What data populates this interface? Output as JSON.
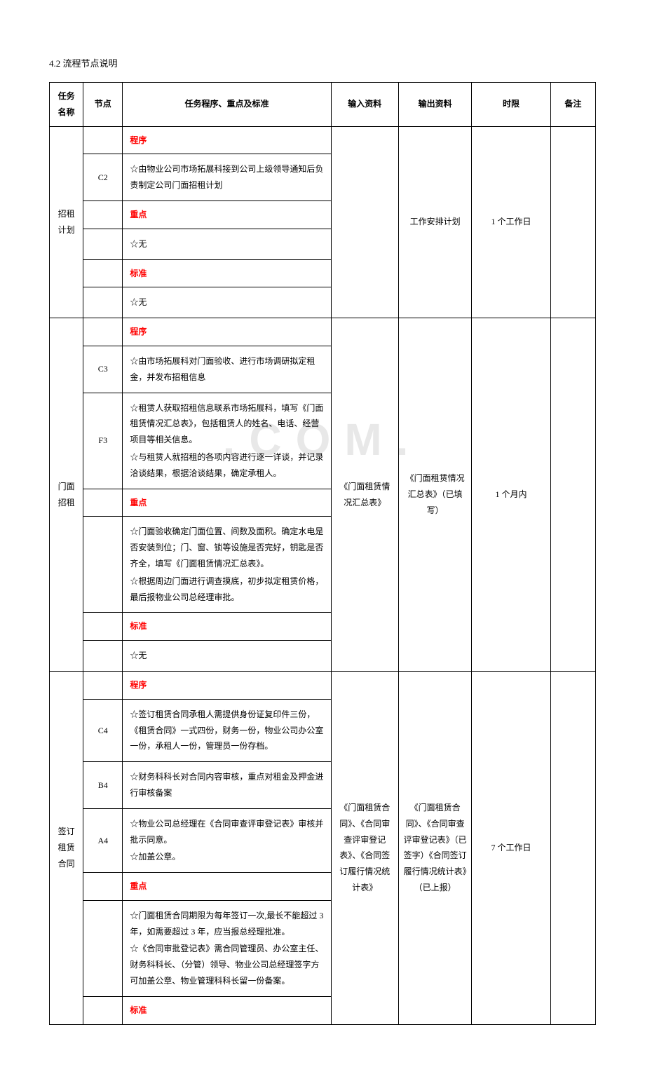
{
  "section_title": "4.2 流程节点说明",
  "watermark": ".COM.",
  "headers": {
    "task": "任务名称",
    "node": "节点",
    "proc": "任务程序、重点及标准",
    "input": "输入资料",
    "output": "输出资料",
    "time": "时限",
    "note": "备注"
  },
  "labels": {
    "procedure": "程序",
    "keypoint": "重点",
    "standard": "标准"
  },
  "rows": [
    {
      "task": "招租计划",
      "input": "",
      "output": "工作安排计划",
      "time": "1 个工作日",
      "note": "",
      "segments": [
        {
          "node": "",
          "type": "label",
          "text_key": "labels.procedure"
        },
        {
          "node": "C2",
          "type": "text",
          "text": "☆由物业公司市场拓展科接到公司上级领导通知后负责制定公司门面招租计划"
        },
        {
          "node": "",
          "type": "label",
          "text_key": "labels.keypoint"
        },
        {
          "node": "",
          "type": "text",
          "text": "☆无"
        },
        {
          "node": "",
          "type": "label",
          "text_key": "labels.standard"
        },
        {
          "node": "",
          "type": "text",
          "text": "☆无"
        }
      ]
    },
    {
      "task": "门面招租",
      "input": "《门面租赁情况汇总表》",
      "output": "《门面租赁情况汇总表》（已填写）",
      "time": "1 个月内",
      "note": "",
      "segments": [
        {
          "node": "",
          "type": "label",
          "text_key": "labels.procedure"
        },
        {
          "node": "C3",
          "type": "text",
          "text": "☆由市场拓展科对门面验收、进行市场调研拟定租金，并发布招租信息"
        },
        {
          "node": "F3",
          "type": "multi",
          "texts": [
            "☆租赁人获取招租信息联系市场拓展科，填写《门面租赁情况汇总表》，包括租赁人的姓名、电话、经营项目等相关信息。",
            "☆与租赁人就招租的各项内容进行逐一详谈，并记录洽谈结果，根据洽谈结果，确定承租人。"
          ]
        },
        {
          "node": "",
          "type": "label",
          "text_key": "labels.keypoint"
        },
        {
          "node": "",
          "type": "multi",
          "texts": [
            "☆门面验收确定门面位置、间数及面积。确定水电是否安装到位；门、窗、锁等设施是否完好，钥匙是否齐全，填写《门面租赁情况汇总表》。",
            "☆根据周边门面进行调查摸底，初步拟定租赁价格，最后报物业公司总经理审批。"
          ]
        },
        {
          "node": "",
          "type": "label",
          "text_key": "labels.standard"
        },
        {
          "node": "",
          "type": "text",
          "text": "☆无"
        }
      ]
    },
    {
      "task": "签订租赁合同",
      "input": "《门面租赁合同》、《合同审查评审登记表》、《合同签订履行情况统计表》",
      "output": "《门面租赁合同》、《合同审查评审登记表》（已签字）《合同签订履行情况统计表》（已上报）",
      "time": "7 个工作日",
      "note": "",
      "segments": [
        {
          "node": "",
          "type": "label",
          "text_key": "labels.procedure"
        },
        {
          "node": "C4",
          "type": "text",
          "text": "☆签订租赁合同承租人需提供身份证复印件三份，《租赁合同》一式四份，财务一份，物业公司办公室一份，承租人一份，管理员一份存档。"
        },
        {
          "node": "B4",
          "type": "text",
          "text": "☆财务科科长对合同内容审核，重点对租金及押金进行审核备案"
        },
        {
          "node": "A4",
          "type": "multi",
          "texts": [
            "☆物业公司总经理在《合同审查评审登记表》审核并批示同意。",
            "☆加盖公章。"
          ]
        },
        {
          "node": "",
          "type": "label",
          "text_key": "labels.keypoint"
        },
        {
          "node": "",
          "type": "multi",
          "texts": [
            "☆门面租赁合同期限为每年签订一次,最长不能超过 3 年，如需要超过 3 年，应当报总经理批准。",
            "☆《合同审批登记表》需合同管理员、办公室主任、财务科科长、（分管）领导、物业公司总经理签字方可加盖公章、物业管理科科长留一份备案。"
          ]
        },
        {
          "node": "",
          "type": "label",
          "text_key": "labels.standard"
        }
      ]
    }
  ]
}
